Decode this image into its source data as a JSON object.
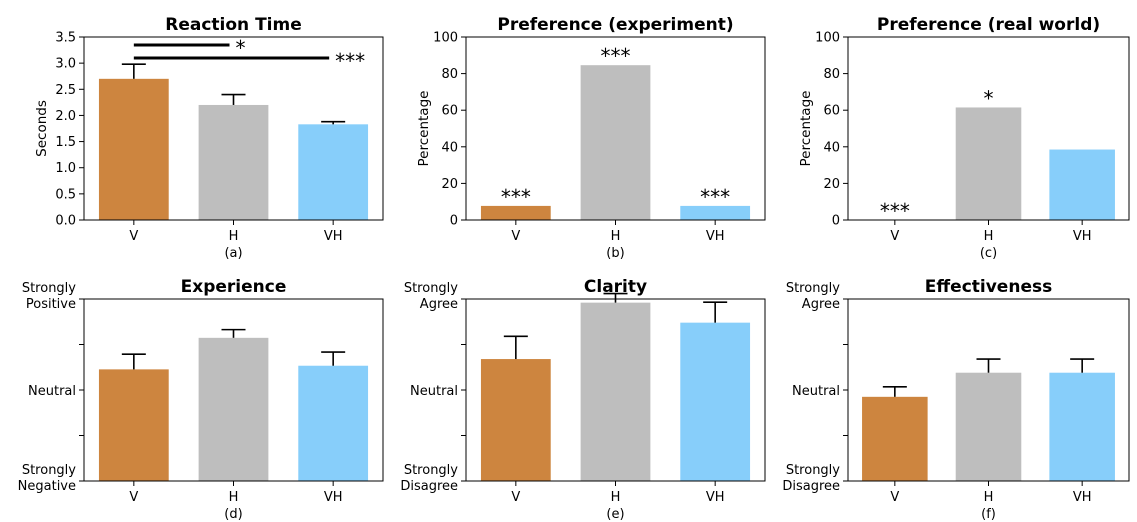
{
  "colors": {
    "V": "#CD853F",
    "H": "#BEBEBE",
    "VH": "#87CEFA"
  },
  "chart_data": [
    {
      "type": "bar",
      "title": "Reaction Time",
      "caption": "(a)",
      "ylabel": "Seconds",
      "categories": [
        "V",
        "H",
        "VH"
      ],
      "values": [
        2.7,
        2.2,
        1.83
      ],
      "errors": [
        0.28,
        0.2,
        0.05
      ],
      "ylim": [
        0,
        3.5
      ],
      "yticks": [
        0.0,
        0.5,
        1.0,
        1.5,
        2.0,
        2.5,
        3.0,
        3.5
      ],
      "ytick_labels": [
        "0.0",
        "0.5",
        "1.0",
        "1.5",
        "2.0",
        "2.5",
        "3.0",
        "3.5"
      ],
      "bar_annotations": [
        "",
        "",
        ""
      ],
      "significance": [
        {
          "from": "V",
          "to": "H",
          "label": "*"
        },
        {
          "from": "V",
          "to": "VH",
          "label": "***"
        }
      ]
    },
    {
      "type": "bar",
      "title": "Preference (experiment)",
      "caption": "(b)",
      "ylabel": "Percentage",
      "categories": [
        "V",
        "H",
        "VH"
      ],
      "values": [
        7.7,
        84.6,
        7.7
      ],
      "errors": [
        0,
        0,
        0
      ],
      "ylim": [
        0,
        100
      ],
      "yticks": [
        0,
        20,
        40,
        60,
        80,
        100
      ],
      "ytick_labels": [
        "0",
        "20",
        "40",
        "60",
        "80",
        "100"
      ],
      "bar_annotations": [
        "***",
        "***",
        "***"
      ],
      "significance": []
    },
    {
      "type": "bar",
      "title": "Preference (real world)",
      "caption": "(c)",
      "ylabel": "Percentage",
      "categories": [
        "V",
        "H",
        "VH"
      ],
      "values": [
        0,
        61.5,
        38.5
      ],
      "errors": [
        0,
        0,
        0
      ],
      "ylim": [
        0,
        100
      ],
      "yticks": [
        0,
        20,
        40,
        60,
        80,
        100
      ],
      "ytick_labels": [
        "0",
        "20",
        "40",
        "60",
        "80",
        "100"
      ],
      "bar_annotations": [
        "***",
        "*",
        ""
      ],
      "significance": []
    },
    {
      "type": "bar",
      "title": "Experience",
      "caption": "(d)",
      "ylabel": "",
      "categories": [
        "V",
        "H",
        "VH"
      ],
      "values": [
        0.68,
        1.72,
        0.8
      ],
      "errors": [
        0.5,
        0.27,
        0.45
      ],
      "ylim": [
        -3,
        3
      ],
      "yticks": [
        -3,
        -1.5,
        0,
        1.5,
        3
      ],
      "ytick_labels": [
        [
          "Strongly",
          "Negative"
        ],
        "",
        [
          "Neutral"
        ],
        "",
        [
          "Strongly",
          "Positive"
        ]
      ],
      "bar_annotations": [
        "",
        "",
        ""
      ],
      "significance": []
    },
    {
      "type": "bar",
      "title": "Clarity",
      "caption": "(e)",
      "ylabel": "",
      "categories": [
        "V",
        "H",
        "VH"
      ],
      "values": [
        0.68,
        1.92,
        1.48
      ],
      "errors": [
        0.5,
        0.2,
        0.45
      ],
      "ylim": [
        -2,
        2
      ],
      "yticks": [
        -2,
        -1,
        0,
        1,
        2
      ],
      "ytick_labels": [
        [
          "Strongly",
          "Disagree"
        ],
        "",
        [
          "Neutral"
        ],
        "",
        [
          "Strongly",
          "Agree"
        ]
      ],
      "bar_annotations": [
        "",
        "",
        ""
      ],
      "significance": []
    },
    {
      "type": "bar",
      "title": "Effectiveness",
      "caption": "(f)",
      "ylabel": "",
      "categories": [
        "V",
        "H",
        "VH"
      ],
      "values": [
        -0.15,
        0.38,
        0.38
      ],
      "errors": [
        0.22,
        0.3,
        0.3
      ],
      "ylim": [
        -2,
        2
      ],
      "yticks": [
        -2,
        -1,
        0,
        1,
        2
      ],
      "ytick_labels": [
        [
          "Strongly",
          "Disagree"
        ],
        "",
        [
          "Neutral"
        ],
        "",
        [
          "Strongly",
          "Agree"
        ]
      ],
      "bar_annotations": [
        "",
        "",
        ""
      ],
      "significance": []
    }
  ]
}
